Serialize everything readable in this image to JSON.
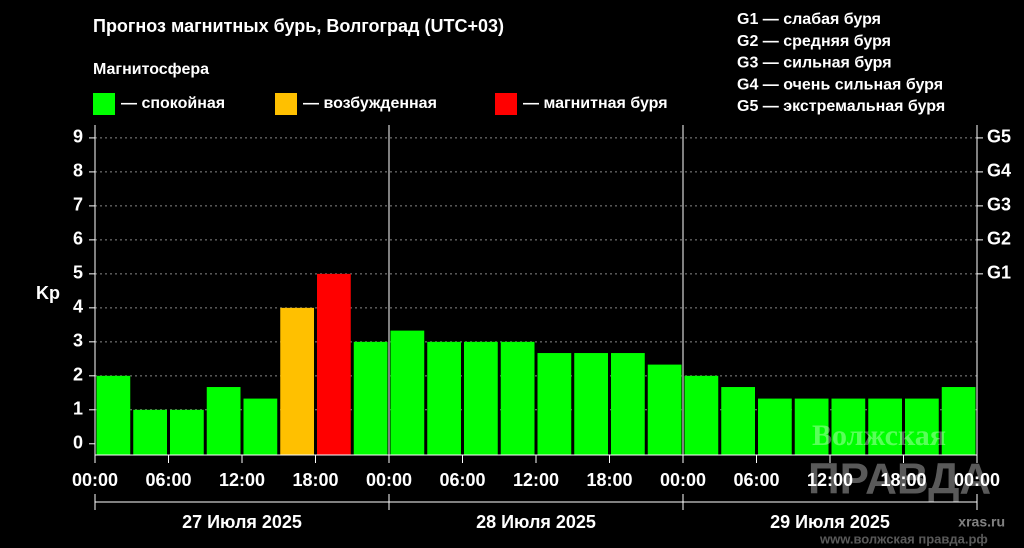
{
  "chart_data": {
    "type": "bar",
    "title": "Прогноз магнитных бурь, Волгоград (UTC+03)",
    "legend_title": "Магнитосфера",
    "legend": [
      {
        "name": "— спокойная",
        "color": "#00ff00"
      },
      {
        "name": "— возбужденная",
        "color": "#ffc000"
      },
      {
        "name": "— магнитная буря",
        "color": "#ff0000"
      }
    ],
    "g_legend": [
      "G1 — слабая буря",
      "G2 — средняя буря",
      "G3 — сильная буря",
      "G4 — очень сильная буря",
      "G5 — экстремальная буря"
    ],
    "y_label": "Kp",
    "values": [
      2,
      1,
      1,
      1.67,
      1.33,
      4,
      5,
      3,
      3.33,
      3,
      3,
      3,
      2.67,
      2.67,
      2.67,
      2.33,
      2,
      1.67,
      1.33,
      1.33,
      1.33,
      1.33,
      1.33,
      1.67
    ],
    "colors": [
      "#00ff00",
      "#00ff00",
      "#00ff00",
      "#00ff00",
      "#00ff00",
      "#ffc000",
      "#ff0000",
      "#00ff00",
      "#00ff00",
      "#00ff00",
      "#00ff00",
      "#00ff00",
      "#00ff00",
      "#00ff00",
      "#00ff00",
      "#00ff00",
      "#00ff00",
      "#00ff00",
      "#00ff00",
      "#00ff00",
      "#00ff00",
      "#00ff00",
      "#00ff00",
      "#00ff00"
    ],
    "ylim": [
      -0.33,
      9.38
    ],
    "yticks": [
      0,
      1,
      2,
      3,
      4,
      5,
      6,
      7,
      8,
      9
    ],
    "y2lim": [
      -0.33,
      9.38
    ],
    "y2ticks": [
      {
        "value": 5,
        "label": "G1"
      },
      {
        "value": 6,
        "label": "G2"
      },
      {
        "value": 7,
        "label": "G3"
      },
      {
        "value": 8,
        "label": "G4"
      },
      {
        "value": 9,
        "label": "G5"
      }
    ],
    "x_tick_labels": [
      "00:00",
      "06:00",
      "12:00",
      "18:00",
      "00:00",
      "06:00",
      "12:00",
      "18:00",
      "00:00",
      "06:00",
      "12:00",
      "18:00",
      "00:00"
    ],
    "days": [
      "27 Июля 2025",
      "28 Июля 2025",
      "29 Июля 2025"
    ],
    "grid": true,
    "watermark": [
      "Волжская",
      "ПРАВДА",
      "www.волжская правда.рф"
    ],
    "source": "xras.ru"
  }
}
